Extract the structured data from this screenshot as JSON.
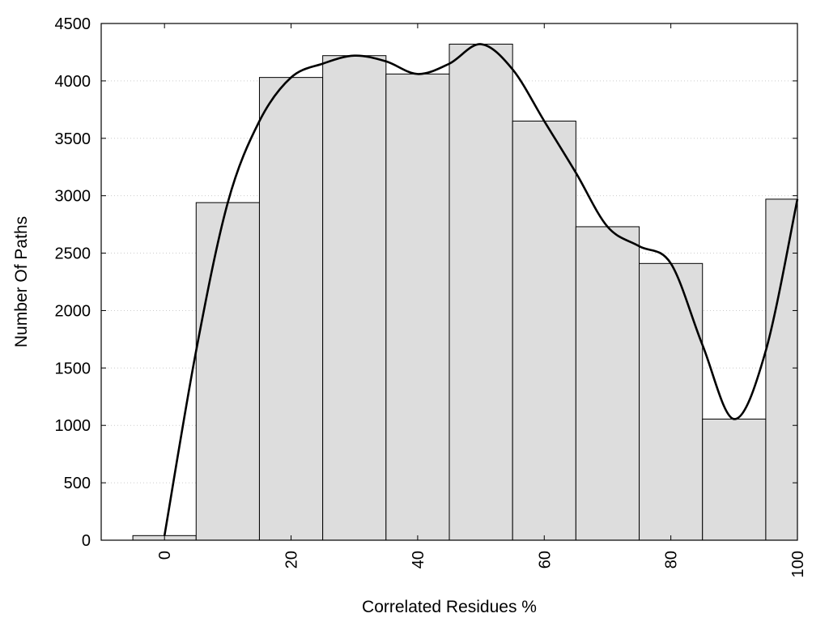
{
  "chart_data": {
    "type": "bar",
    "xlabel": "Correlated Residues %",
    "ylabel": "Number Of Paths",
    "xlim": [
      -10,
      100
    ],
    "ylim": [
      0,
      4500
    ],
    "x_ticks": [
      0,
      20,
      40,
      60,
      80,
      100
    ],
    "y_ticks": [
      0,
      500,
      1000,
      1500,
      2000,
      2500,
      3000,
      3500,
      4000,
      4500
    ],
    "bin_width": 10,
    "bars": [
      {
        "x": 0,
        "value": 40
      },
      {
        "x": 10,
        "value": 2940
      },
      {
        "x": 20,
        "value": 4030
      },
      {
        "x": 30,
        "value": 4220
      },
      {
        "x": 40,
        "value": 4060
      },
      {
        "x": 50,
        "value": 4320
      },
      {
        "x": 60,
        "value": 3650
      },
      {
        "x": 70,
        "value": 2730
      },
      {
        "x": 80,
        "value": 2410
      },
      {
        "x": 90,
        "value": 1055
      },
      {
        "x": 100,
        "value": 2970
      }
    ],
    "curve": {
      "x": [
        0,
        5,
        10,
        15,
        20,
        25,
        30,
        35,
        40,
        45,
        50,
        55,
        60,
        65,
        70,
        75,
        80,
        85,
        90,
        95,
        100
      ],
      "y": [
        40,
        1650,
        2940,
        3650,
        4030,
        4150,
        4220,
        4170,
        4060,
        4150,
        4320,
        4100,
        3650,
        3200,
        2730,
        2560,
        2410,
        1700,
        1055,
        1650,
        2970
      ]
    },
    "grid": "horizontal dotted",
    "legend": "none"
  }
}
